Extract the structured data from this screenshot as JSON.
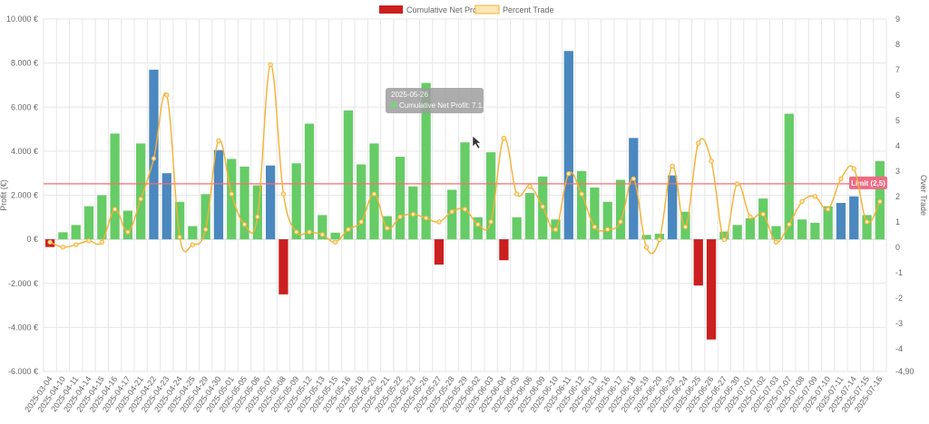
{
  "colors": {
    "positive": "#66cc66",
    "negative": "#cc1f1f",
    "highlight": "#4a88bf",
    "line": "#f5b133",
    "limit": "#ff6b6b",
    "limit_label_bg": "#ee6b84",
    "grid": "#e6e6e6",
    "tooltip_bg": "#9e9e9e"
  },
  "icons": {
    "cursor": "mouse-pointer-icon"
  },
  "tooltip": {
    "title": "2025-05-26",
    "body": "Cumulative Net Profit: 7.1..."
  },
  "chart_data": {
    "type": "bar",
    "legend": {
      "position": "top",
      "items": [
        {
          "label": "Cumulative Net Profit",
          "swatch": "bar"
        },
        {
          "label": "Percent Trade",
          "swatch": "line"
        }
      ]
    },
    "y_left": {
      "label": "Profit (€)",
      "min": -6000,
      "max": 10000,
      "ticks": [
        "-6.000 €",
        "-4.000 €",
        "-2.000 €",
        "0 €",
        "2.000 €",
        "4.000 €",
        "6.000 €",
        "8.000 €",
        "10.000 €"
      ],
      "tick_values": [
        -6000,
        -4000,
        -2000,
        0,
        2000,
        4000,
        6000,
        8000,
        10000
      ]
    },
    "y_right": {
      "label": "Over Trade",
      "min": -4.9,
      "max": 9,
      "ticks": [
        "-4,90",
        "-4",
        "-3",
        "-2",
        "-1",
        "0",
        "1",
        "2",
        "3",
        "4",
        "5",
        "6",
        "7",
        "8",
        "9"
      ],
      "tick_values": [
        -4.9,
        -4,
        -3,
        -2,
        -1,
        0,
        1,
        2,
        3,
        4,
        5,
        6,
        7,
        8,
        9
      ]
    },
    "grid": true,
    "limit": {
      "value": 2.5,
      "label": "Limit (2,5)"
    },
    "categories": [
      "2025-03-04",
      "2025-04-10",
      "2025-04-11",
      "2025-04-14",
      "2025-04-15",
      "2025-04-16",
      "2025-04-17",
      "2025-04-21",
      "2025-04-22",
      "2025-04-23",
      "2025-04-24",
      "2025-04-25",
      "2025-04-29",
      "2025-04-30",
      "2025-05-01",
      "2025-05-05",
      "2025-05-06",
      "2025-05-07",
      "2025-05-08",
      "2025-05-09",
      "2025-05-12",
      "2025-05-13",
      "2025-05-15",
      "2025-05-16",
      "2025-05-19",
      "2025-05-20",
      "2025-05-21",
      "2025-05-22",
      "2025-05-23",
      "2025-05-26",
      "2025-05-27",
      "2025-05-28",
      "2025-05-29",
      "2025-06-02",
      "2025-06-03",
      "2025-06-04",
      "2025-06-05",
      "2025-06-06",
      "2025-06-09",
      "2025-06-10",
      "2025-06-11",
      "2025-06-12",
      "2025-06-13",
      "2025-06-16",
      "2025-06-17",
      "2025-06-18",
      "2025-06-19",
      "2025-06-20",
      "2025-06-23",
      "2025-06-24",
      "2025-06-25",
      "2025-06-26",
      "2025-06-27",
      "2025-06-30",
      "2025-07-01",
      "2025-07-02",
      "2025-07-03",
      "2025-07-07",
      "2025-07-08",
      "2025-07-09",
      "2025-07-10",
      "2025-07-11",
      "2025-07-14",
      "2025-07-15",
      "2025-07-16"
    ],
    "series": [
      {
        "name": "Cumulative Net Profit",
        "type": "bar",
        "axis": "left",
        "values": [
          -350,
          320,
          650,
          1500,
          2000,
          4800,
          1300,
          4350,
          7700,
          3000,
          1700,
          600,
          2050,
          4050,
          3650,
          3300,
          2450,
          3350,
          -2500,
          3450,
          5250,
          1100,
          300,
          5850,
          3400,
          4350,
          1050,
          3750,
          2400,
          7100,
          -1150,
          2250,
          4400,
          1000,
          3950,
          -950,
          1000,
          2100,
          2850,
          900,
          8550,
          3100,
          2350,
          1700,
          2700,
          4600,
          200,
          250,
          2900,
          1250,
          -2100,
          -4550,
          350,
          650,
          950,
          1850,
          600,
          5700,
          900,
          750,
          1500,
          1650,
          1950,
          1100,
          3550
        ],
        "highlight_indices": [
          8,
          9,
          13,
          17,
          40,
          45,
          48,
          61,
          62
        ]
      },
      {
        "name": "Percent Trade",
        "type": "line",
        "axis": "right",
        "values": [
          0.2,
          0.0,
          0.1,
          0.25,
          0.2,
          1.5,
          0.6,
          1.9,
          3.5,
          6.0,
          0.4,
          0.1,
          0.7,
          4.2,
          2.1,
          0.9,
          1.2,
          7.2,
          2.1,
          0.6,
          0.6,
          0.5,
          0.2,
          0.7,
          1.0,
          2.1,
          0.75,
          1.2,
          1.3,
          1.15,
          1.0,
          1.4,
          1.5,
          0.9,
          1.0,
          4.3,
          2.1,
          2.4,
          1.6,
          0.7,
          2.9,
          2.1,
          0.8,
          0.7,
          1.0,
          2.7,
          0.0,
          0.3,
          3.2,
          0.8,
          4.1,
          3.4,
          0.3,
          2.5,
          1.2,
          1.3,
          0.2,
          0.9,
          1.8,
          2.0,
          1.5,
          2.7,
          3.1,
          1.0,
          1.8
        ]
      }
    ]
  }
}
